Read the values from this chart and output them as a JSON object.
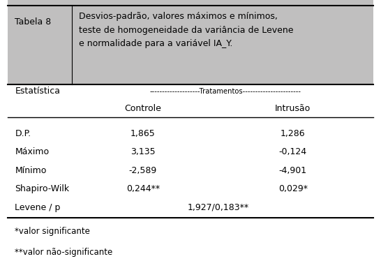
{
  "title_label": "Tabela 8",
  "title_text": "Desvios-padrão, valores máximos e mínimos,\nteste de homogeneidade da variância de Levene\ne normalidade para a variável IA_Y.",
  "header_bg": "#c0bfbf",
  "col_header1": "Estatística",
  "col_tratamentos": "--------------------Tratamentos-----------------------",
  "col_controle": "Controle",
  "col_intrusao": "Intrusão",
  "rows": [
    {
      "label": "D.P.",
      "controle": "1,865",
      "intrusao": "1,286",
      "span": null
    },
    {
      "label": "Máximo",
      "controle": "3,135",
      "intrusao": "-0,124",
      "span": null
    },
    {
      "label": "Mínimo",
      "controle": "-2,589",
      "intrusao": "-4,901",
      "span": null
    },
    {
      "label": "Shapiro-Wilk",
      "controle": "0,244**",
      "intrusao": "0,029*",
      "span": null
    },
    {
      "label": "Levene / p",
      "controle": "",
      "intrusao": "",
      "span": "1,927/0,183**"
    }
  ],
  "footnote1": "*valor significante",
  "footnote2": "**valor não-significante",
  "bg_color": "#ffffff",
  "header_text_color": "#000000",
  "body_text_color": "#000000",
  "fontsize": 9,
  "title_fontsize": 9
}
